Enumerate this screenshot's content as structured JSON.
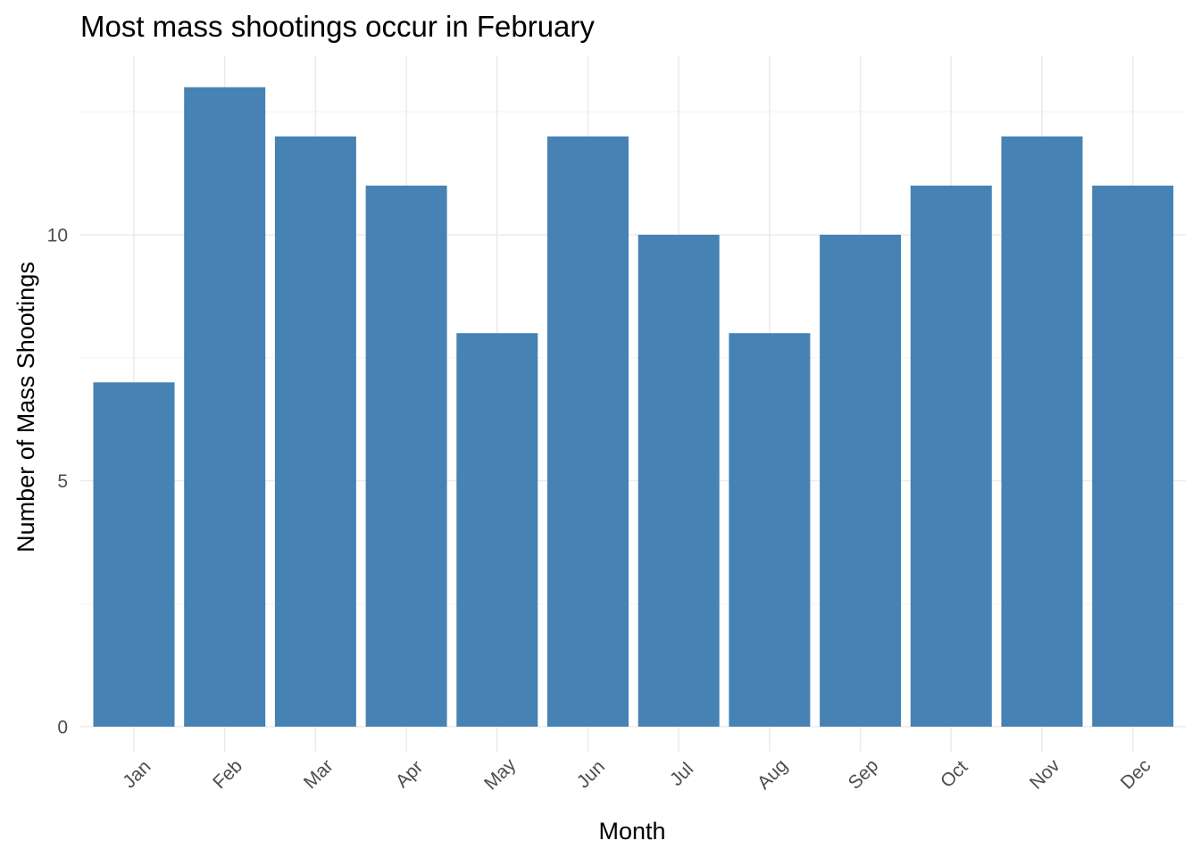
{
  "chart_data": {
    "type": "bar",
    "title": "Most mass shootings occur in February",
    "xlabel": "Month",
    "ylabel": "Number of Mass Shootings",
    "categories": [
      "Jan",
      "Feb",
      "Mar",
      "Apr",
      "May",
      "Jun",
      "Jul",
      "Aug",
      "Sep",
      "Oct",
      "Nov",
      "Dec"
    ],
    "values": [
      7,
      13,
      12,
      11,
      8,
      12,
      10,
      8,
      10,
      11,
      12,
      11
    ],
    "ylim": [
      0,
      13.65
    ],
    "yticks": [
      0,
      5,
      10
    ],
    "y_minor_ticks": [
      2.5,
      7.5,
      12.5
    ],
    "x_tick_rotation_deg": 45,
    "grid": true,
    "legend": "none",
    "bar_color": "#4682B4"
  }
}
